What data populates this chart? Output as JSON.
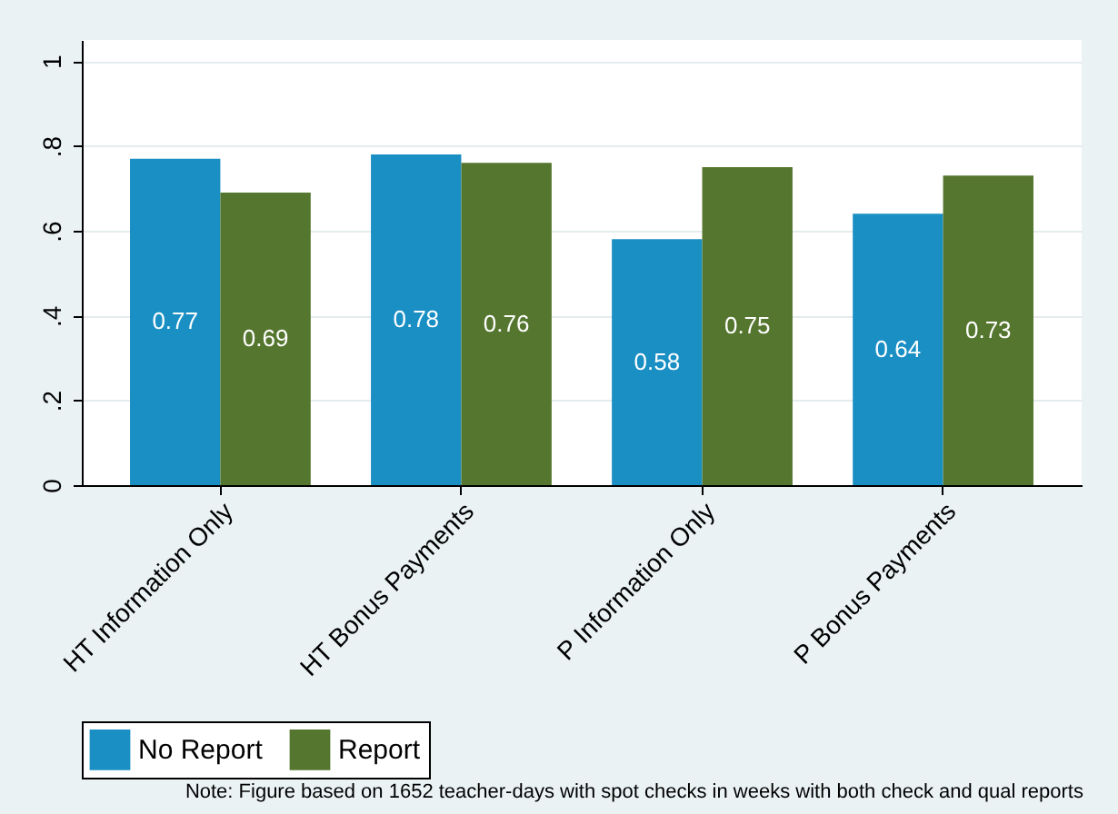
{
  "chart_data": {
    "type": "bar",
    "categories": [
      "HT Information Only",
      "HT Bonus Payments",
      "P Information Only",
      "P Bonus Payments"
    ],
    "series": [
      {
        "name": "No Report",
        "color": "#1a8fc4",
        "values": [
          0.77,
          0.78,
          0.58,
          0.64
        ]
      },
      {
        "name": "Report",
        "color": "#55762e",
        "values": [
          0.69,
          0.76,
          0.75,
          0.73
        ]
      }
    ],
    "ylim": [
      0,
      1.05
    ],
    "yticks": [
      0,
      {
        "value": 0.2,
        "label": ".2"
      },
      {
        "value": 0.4,
        "label": ".4"
      },
      {
        "value": 0.6,
        "label": ".6"
      },
      {
        "value": 0.8,
        "label": ".8"
      },
      1
    ],
    "grid": "y",
    "legend": "bottom",
    "data_labels": true,
    "annotations": [
      "Note: Figure based on 1652 teacher-days with spot checks in weeks with both check and qual reports"
    ]
  }
}
